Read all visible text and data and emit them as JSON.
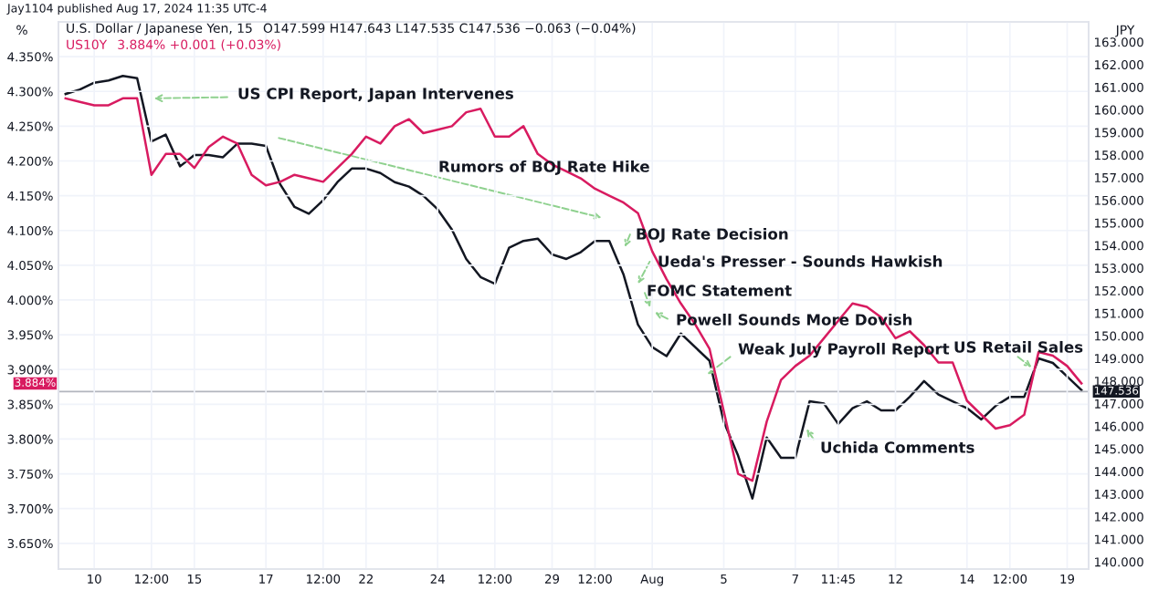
{
  "chart_data": {
    "type": "line",
    "ylabel": "%",
    "y2label": "JPY",
    "legend": "top left",
    "grid": true,
    "line_style": "solid",
    "categories": [
      null,
      null,
      "10",
      null,
      null,
      null,
      "12:00",
      null,
      null,
      "15",
      null,
      null,
      null,
      null,
      "17",
      null,
      null,
      null,
      "12:00",
      null,
      null,
      "22",
      null,
      null,
      null,
      null,
      "24",
      null,
      null,
      null,
      "12:00",
      null,
      null,
      null,
      "29",
      null,
      null,
      "12:00",
      null,
      null,
      null,
      "Aug",
      null,
      null,
      null,
      null,
      "5",
      null,
      null,
      null,
      null,
      "7",
      null,
      null,
      "11:45",
      null,
      null,
      null,
      "12",
      null,
      null,
      null,
      null,
      "14",
      null,
      null,
      "12:00",
      null,
      null,
      null,
      "19",
      null
    ],
    "ylim": [
      3.613,
      4.4
    ],
    "yticks": [
      {
        "value": 3.65,
        "label": "3.650%"
      },
      {
        "value": 3.7,
        "label": "3.700%"
      },
      {
        "value": 3.75,
        "label": "3.750%"
      },
      {
        "value": 3.8,
        "label": "3.800%"
      },
      {
        "value": 3.85,
        "label": "3.850%"
      },
      {
        "value": 3.9,
        "label": "3.900%"
      },
      {
        "value": 3.95,
        "label": "3.950%"
      },
      {
        "value": 4.0,
        "label": "4.000%"
      },
      {
        "value": 4.05,
        "label": "4.050%"
      },
      {
        "value": 4.1,
        "label": "4.100%"
      },
      {
        "value": 4.15,
        "label": "4.150%"
      },
      {
        "value": 4.2,
        "label": "4.200%"
      },
      {
        "value": 4.25,
        "label": "4.250%"
      },
      {
        "value": 4.3,
        "label": "4.300%"
      },
      {
        "value": 4.35,
        "label": "4.350%"
      }
    ],
    "y2lim": [
      139.68,
      163.89
    ],
    "y2ticks": [
      {
        "value": 140,
        "label": "140.000"
      },
      {
        "value": 141,
        "label": "141.000"
      },
      {
        "value": 142,
        "label": "142.000"
      },
      {
        "value": 143,
        "label": "143.000"
      },
      {
        "value": 144,
        "label": "144.000"
      },
      {
        "value": 145,
        "label": "145.000"
      },
      {
        "value": 146,
        "label": "146.000"
      },
      {
        "value": 147,
        "label": "147.000"
      },
      {
        "value": 148,
        "label": "148.000"
      },
      {
        "value": 149,
        "label": "149.000"
      },
      {
        "value": 150,
        "label": "150.000"
      },
      {
        "value": 151,
        "label": "151.000"
      },
      {
        "value": 152,
        "label": "152.000"
      },
      {
        "value": 153,
        "label": "153.000"
      },
      {
        "value": 154,
        "label": "154.000"
      },
      {
        "value": 155,
        "label": "155.000"
      },
      {
        "value": 156,
        "label": "156.000"
      },
      {
        "value": 157,
        "label": "157.000"
      },
      {
        "value": 158,
        "label": "158.000"
      },
      {
        "value": 159,
        "label": "159.000"
      },
      {
        "value": 160,
        "label": "160.000"
      },
      {
        "value": 161,
        "label": "161.000"
      },
      {
        "value": 162,
        "label": "162.000"
      },
      {
        "value": 163,
        "label": "163.000"
      }
    ],
    "series": [
      {
        "name": "U.S. Dollar / Japanese Yen, 15",
        "color": "#131722",
        "axis": "y2",
        "values": [
          160.7,
          160.9,
          161.2,
          161.3,
          161.5,
          161.4,
          158.6,
          158.9,
          157.5,
          158.0,
          158.0,
          157.9,
          158.5,
          158.5,
          158.4,
          156.7,
          155.7,
          155.4,
          156.0,
          156.8,
          157.4,
          157.4,
          157.2,
          156.8,
          156.6,
          156.2,
          155.6,
          154.7,
          153.4,
          152.6,
          152.3,
          153.9,
          154.2,
          154.3,
          153.6,
          153.4,
          153.7,
          154.2,
          154.2,
          152.7,
          150.5,
          149.5,
          149.1,
          150.1,
          149.5,
          148.9,
          146.2,
          144.7,
          142.8,
          145.5,
          144.6,
          144.6,
          147.1,
          147.0,
          146.1,
          146.8,
          147.1,
          146.7,
          146.7,
          147.3,
          148.0,
          147.4,
          147.1,
          146.8,
          146.3,
          146.9,
          147.3,
          147.3,
          149.0,
          148.8,
          148.2,
          147.6
        ]
      },
      {
        "name": "US10Y",
        "color": "#d81b60",
        "axis": "y",
        "values": [
          4.29,
          4.285,
          4.28,
          4.28,
          4.29,
          4.29,
          4.18,
          4.21,
          4.21,
          4.19,
          4.22,
          4.235,
          4.225,
          4.18,
          4.165,
          4.17,
          4.18,
          4.175,
          4.17,
          4.19,
          4.21,
          4.235,
          4.225,
          4.25,
          4.26,
          4.24,
          4.245,
          4.25,
          4.27,
          4.275,
          4.235,
          4.235,
          4.25,
          4.21,
          4.195,
          4.185,
          4.175,
          4.16,
          4.15,
          4.14,
          4.125,
          4.07,
          4.03,
          3.995,
          3.965,
          3.93,
          3.84,
          3.75,
          3.74,
          3.825,
          3.885,
          3.905,
          3.92,
          3.945,
          3.97,
          3.995,
          3.99,
          3.975,
          3.945,
          3.955,
          3.935,
          3.91,
          3.91,
          3.855,
          3.835,
          3.815,
          3.82,
          3.835,
          3.925,
          3.92,
          3.905,
          3.88
        ]
      }
    ],
    "ref_lines": [
      {
        "axis": "y2",
        "value": 147.536,
        "label": "147.536",
        "color": "#b2b5be",
        "line_style": "solid"
      }
    ],
    "annotations": [
      "Jay1104 published Aug 17, 2024 11:35 UTC-4",
      "O147.599 H147.643 L147.535 C147.536 −0.063 (−0.04%)",
      "3.884% +0.001 (+0.03%)",
      "3.884%",
      {
        "text": "US CPI Report, Japan Intervenes",
        "x": "12:00",
        "y": 4.29
      },
      "Rumors of BOJ Rate Hike",
      "BOJ Rate Decision",
      "Ueda's Presser - Sounds Hawkish",
      "FOMC Statement",
      "Powell Sounds More Dovish",
      "Weak July Payroll Report",
      "US Retail Sales",
      "Uchida Comments"
    ]
  }
}
